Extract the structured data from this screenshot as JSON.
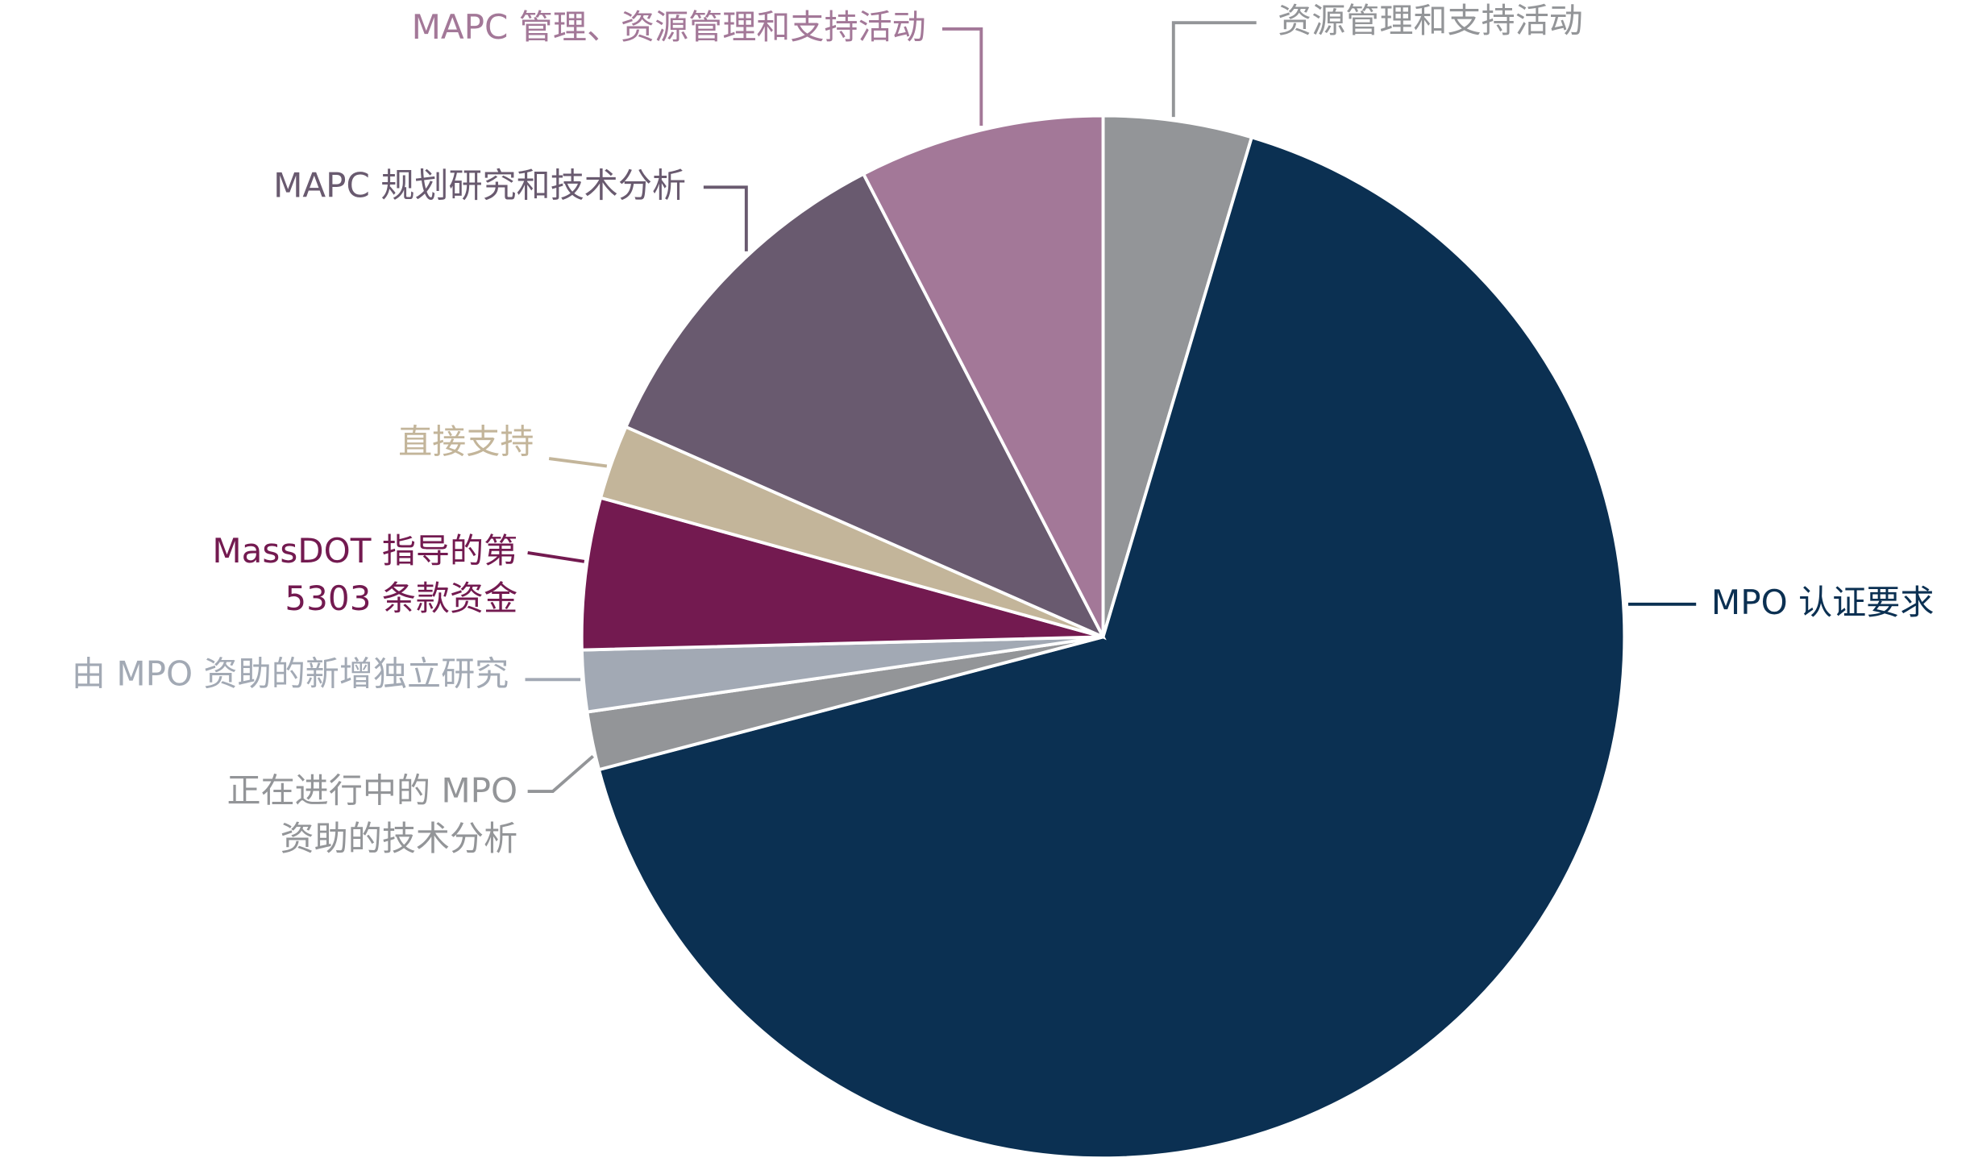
{
  "chart_data": {
    "type": "pie",
    "categories": [
      [
        "资源管理和支持活动"
      ],
      [
        "MPO 认证要求"
      ],
      [
        "正在进行中的 MPO",
        "资助的技术分析"
      ],
      [
        "由 MPO 资助的新增独立研究"
      ],
      [
        "MassDOT 指导的第",
        "5303 条款资金"
      ],
      [
        "直接支持"
      ],
      [
        "MAPC 规划研究和技术分析"
      ],
      [
        "MAPC 管理、资源管理和支持活动"
      ]
    ],
    "values": [
      4.6,
      66.3,
      1.8,
      1.9,
      4.7,
      2.3,
      10.8,
      7.6
    ],
    "colors": [
      "#939598",
      "#0b3052",
      "#939598",
      "#a2a9b4",
      "#731a50",
      "#c3b59a",
      "#695a6f",
      "#a37898"
    ]
  }
}
